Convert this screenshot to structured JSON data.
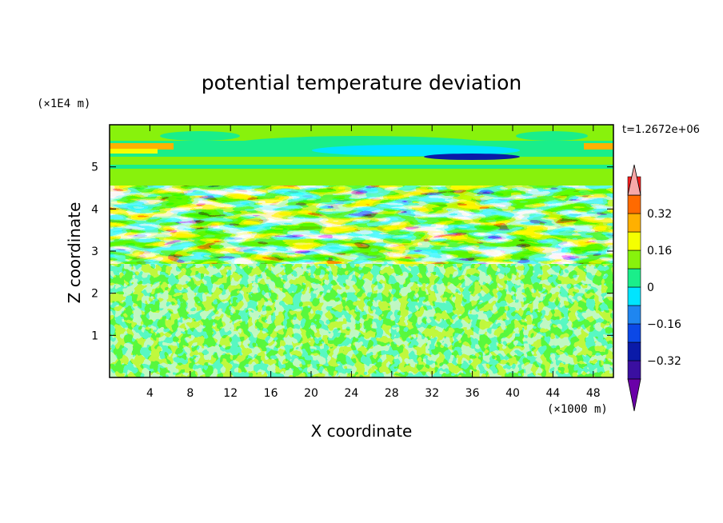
{
  "chart_data": {
    "type": "heatmap",
    "title": "potential temperature deviation",
    "xlabel": "X coordinate",
    "ylabel": "Z coordinate",
    "x_unit": "(×1000 m)",
    "y_unit": "(×1E4 m)",
    "time_label": "t=1.2672e+06",
    "xlim": [
      0,
      50
    ],
    "ylim": [
      0,
      6
    ],
    "x_ticks": [
      4,
      8,
      12,
      16,
      20,
      24,
      28,
      32,
      36,
      40,
      44,
      48
    ],
    "x_tick_labels": [
      "4",
      "8",
      "12",
      "16",
      "20",
      "24",
      "28",
      "32",
      "36",
      "40",
      "44",
      "48"
    ],
    "y_ticks": [
      1,
      2,
      3,
      4,
      5
    ],
    "y_tick_labels": [
      "1",
      "2",
      "3",
      "4",
      "5"
    ],
    "colorbar": {
      "levels": [
        -0.48,
        -0.4,
        -0.32,
        -0.24,
        -0.16,
        -0.08,
        0,
        0.08,
        0.16,
        0.24,
        0.32,
        0.4,
        0.48
      ],
      "colors": [
        "#6a00a8",
        "#3a0fa0",
        "#0a1aa8",
        "#0b48e6",
        "#1f86f0",
        "#00e5ff",
        "#1aee8a",
        "#88f20c",
        "#f5ff00",
        "#ffb000",
        "#ff6a00",
        "#ff1c1c",
        "#f7a8a8"
      ],
      "labels": [
        "0.32",
        "0.16",
        "0",
        "-0.16",
        "-0.32"
      ],
      "label_values": [
        0.32,
        0.16,
        0,
        -0.16,
        -0.32
      ],
      "extend": "both"
    },
    "regions": [
      {
        "z_range": [
          0,
          2.65
        ],
        "description": "turbulent boundary layer, small-scale fluctuations between -0.08 and 0.08"
      },
      {
        "z_range": [
          2.65,
          4.6
        ],
        "description": "strong wave-breaking layer, values from below -0.48 to above 0.48"
      },
      {
        "z_range": [
          4.6,
          6
        ],
        "description": "stratified upper layer, values mostly between -0.16 and 0.08"
      }
    ],
    "grid": false,
    "legend_position": "right"
  }
}
